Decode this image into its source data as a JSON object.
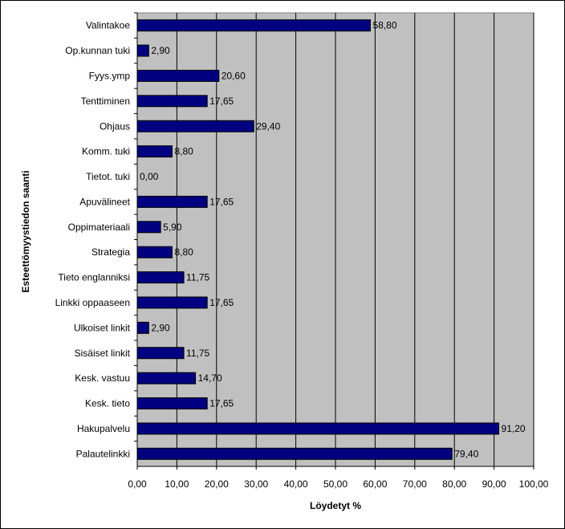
{
  "chart_data": {
    "type": "bar",
    "orientation": "horizontal",
    "categories": [
      "Valintakoe",
      "Op.kunnan tuki",
      "Fyys.ymp",
      "Tenttiminen",
      "Ohjaus",
      "Komm. tuki",
      "Tietot. tuki",
      "Apuvälineet",
      "Oppimateriaali",
      "Strategia",
      "Tieto englanniksi",
      "Linkki oppaaseen",
      "Ulkoiset linkit",
      "Sisäiset linkit",
      "Kesk. vastuu",
      "Kesk. tieto",
      "Hakupalvelu",
      "Palautelinkki"
    ],
    "values": [
      58.8,
      2.9,
      20.6,
      17.65,
      29.4,
      8.8,
      0.0,
      17.65,
      5.9,
      8.8,
      11.75,
      17.65,
      2.9,
      11.75,
      14.7,
      17.65,
      91.2,
      79.4
    ],
    "data_labels": [
      "58,80",
      "2,90",
      "20,60",
      "17,65",
      "29,40",
      "8,80",
      "0,00",
      "17,65",
      "5,90",
      "8,80",
      "11,75",
      "17,65",
      "2,90",
      "11,75",
      "14,70",
      "17,65",
      "91,20",
      "79,40"
    ],
    "xlabel": "Löydetyt %",
    "ylabel": "Esteettömyystiedon saanti",
    "xlim": [
      0,
      100
    ],
    "xticks": [
      "0,00",
      "10,00",
      "20,00",
      "30,00",
      "40,00",
      "50,00",
      "60,00",
      "70,00",
      "80,00",
      "90,00",
      "100,00"
    ],
    "grid": "vertical",
    "legend": "none",
    "colors": {
      "bar_fill": "#000080",
      "bar_stroke": "#000000",
      "plot_background": "#c0c0c0",
      "gridline": "#000000"
    }
  }
}
